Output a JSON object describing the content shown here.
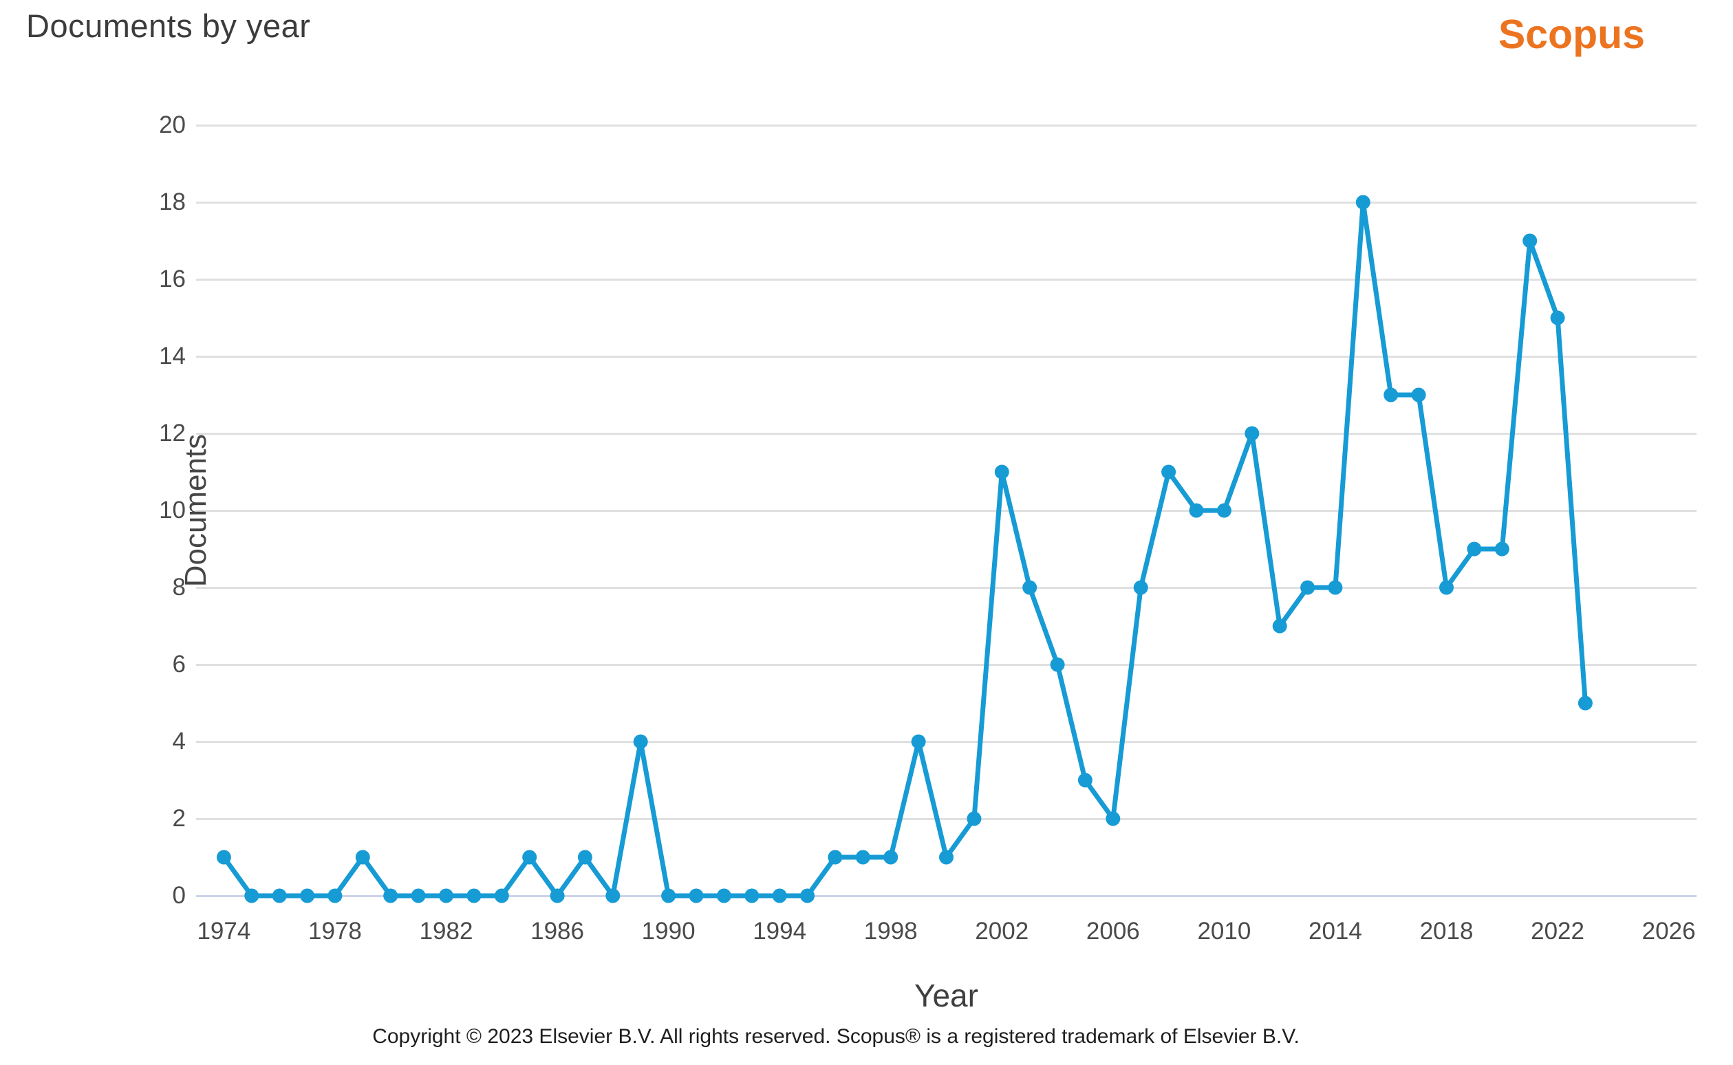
{
  "header": {
    "title": "Documents by year",
    "logo_text": "Scopus"
  },
  "footer": {
    "copyright": "Copyright © 2023 Elsevier B.V. All rights reserved. Scopus® is a registered trademark of Elsevier B.V."
  },
  "chart_data": {
    "type": "line",
    "title": "Documents by year",
    "xlabel": "Year",
    "ylabel": "Documents",
    "x": [
      1974,
      1975,
      1976,
      1977,
      1978,
      1979,
      1980,
      1981,
      1982,
      1983,
      1984,
      1985,
      1986,
      1987,
      1988,
      1989,
      1990,
      1991,
      1992,
      1993,
      1994,
      1995,
      1996,
      1997,
      1998,
      1999,
      2000,
      2001,
      2002,
      2003,
      2004,
      2005,
      2006,
      2007,
      2008,
      2009,
      2010,
      2011,
      2012,
      2013,
      2014,
      2015,
      2016,
      2017,
      2018,
      2019,
      2020,
      2021,
      2022,
      2023
    ],
    "values": [
      1,
      0,
      0,
      0,
      0,
      1,
      0,
      0,
      0,
      0,
      0,
      1,
      0,
      1,
      0,
      4,
      0,
      0,
      0,
      0,
      0,
      0,
      1,
      1,
      1,
      4,
      1,
      2,
      11,
      8,
      6,
      3,
      2,
      8,
      11,
      10,
      10,
      12,
      7,
      8,
      8,
      18,
      13,
      13,
      8,
      9,
      9,
      17,
      15,
      5
    ],
    "series_name": "Documents",
    "x_ticks": [
      1974,
      1978,
      1982,
      1986,
      1990,
      1994,
      1998,
      2002,
      2006,
      2010,
      2014,
      2018,
      2022,
      2026
    ],
    "y_ticks": [
      0,
      2,
      4,
      6,
      8,
      10,
      12,
      14,
      16,
      18,
      20
    ],
    "xlim": [
      1973,
      2027
    ],
    "ylim": [
      0,
      20
    ],
    "grid": "horizontal-only",
    "legend": "none",
    "line_color": "#169bd5",
    "marker": "circle"
  },
  "colors": {
    "accent_blue": "#169bd5",
    "scopus_orange": "#ec7421",
    "gridline": "#e0e0e0",
    "zero_line": "#ccd3e9",
    "title_text": "#3c3c3c",
    "tick_text": "#4a4a4a"
  }
}
